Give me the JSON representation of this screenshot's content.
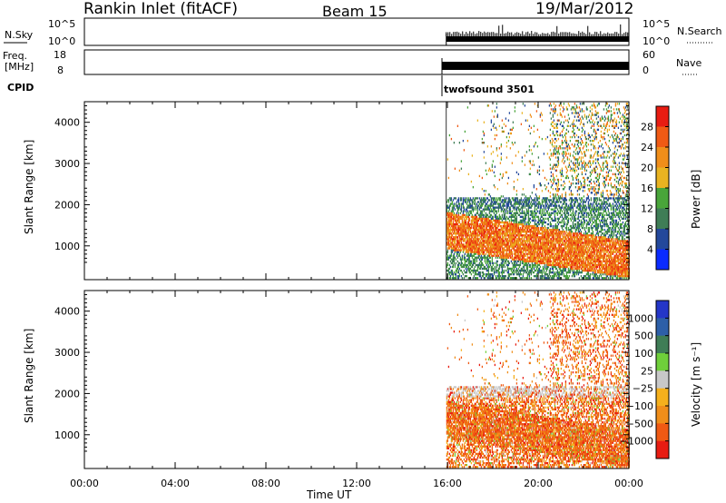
{
  "header": {
    "station": "Rankin Inlet (fitACF)",
    "beam": "Beam 15",
    "date": "19/Mar/2012"
  },
  "params": {
    "nsky_label": "N.Sky",
    "nsky_ticks": [
      "10^5",
      "10^0"
    ],
    "nsearch_label": "N.Search",
    "nsearch_ticks": [
      "10^5",
      "10^0"
    ],
    "freq_label": "Freq.",
    "freq_unit": "[MHz]",
    "freq_ticks": [
      "18",
      "8"
    ],
    "nave_label": "Nave",
    "nave_ticks": [
      "60",
      "0"
    ],
    "cpid_label": "CPID",
    "cpid_value": "twofsound 3501"
  },
  "colors": {
    "power": [
      "#0a2bff",
      "#23489b",
      "#3f7d56",
      "#49a53a",
      "#e9b321",
      "#f08e1a",
      "#f05a14",
      "#e81c12"
    ],
    "velocity": [
      "#e81c12",
      "#f05a14",
      "#f08e1a",
      "#f5b01c",
      "#c8c8c8",
      "#6fcf3a",
      "#3f7d56",
      "#2d5fa8",
      "#2436c8"
    ]
  },
  "chart_data": [
    {
      "type": "heatmap",
      "title": "",
      "xlabel": "",
      "ylabel": "Slant Range [km]",
      "ylim": [
        180,
        4500
      ],
      "yticks": [
        "4000",
        "3000",
        "2000",
        "1000"
      ],
      "xlim": [
        0,
        24
      ],
      "data_start_hour": 15.95,
      "colorbar": {
        "label": "Power [dB]",
        "ticks": [
          "28",
          "24",
          "20",
          "16",
          "12",
          "8",
          "4"
        ],
        "range": [
          0,
          32
        ]
      }
    },
    {
      "type": "heatmap",
      "title": "",
      "xlabel": "Time UT",
      "ylabel": "Slant Range [km]",
      "ylim": [
        180,
        4500
      ],
      "yticks": [
        "4000",
        "3000",
        "2000",
        "1000"
      ],
      "xlim": [
        0,
        24
      ],
      "xticks": [
        "00:00",
        "04:00",
        "08:00",
        "12:00",
        "16:00",
        "20:00",
        "00:00"
      ],
      "data_start_hour": 15.95,
      "colorbar": {
        "label": "Velocity [m s⁻¹]",
        "ticks": [
          "1000",
          "500",
          "100",
          "25",
          "−25",
          "−100",
          "−500",
          "−1000"
        ],
        "range": [
          -1250,
          1250
        ]
      }
    }
  ]
}
